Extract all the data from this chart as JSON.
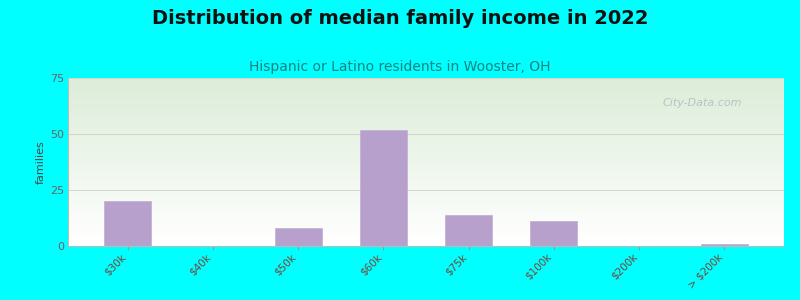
{
  "title": "Distribution of median family income in 2022",
  "subtitle": "Hispanic or Latino residents in Wooster, OH",
  "ylabel": "families",
  "background_outer": "#00FFFF",
  "bg_top_color": "#dcecd8",
  "bg_bottom_color": "#ffffff",
  "bar_color": "#b8a0cc",
  "bar_edge_color": "#c0acd4",
  "categories": [
    "$30k",
    "$40k",
    "$50k",
    "$60k",
    "$75k",
    "$100k",
    "$200k",
    "> $200k"
  ],
  "values": [
    20,
    0,
    8,
    52,
    14,
    11,
    0,
    1
  ],
  "ylim": [
    0,
    75
  ],
  "yticks": [
    0,
    25,
    50,
    75
  ],
  "title_fontsize": 14,
  "title_color": "#111111",
  "subtitle_fontsize": 10,
  "subtitle_color": "#1a8080",
  "watermark": "City-Data.com",
  "watermark_color": "#b0c0c0",
  "tick_label_color": "#774433",
  "tick_label_fontsize": 7.5,
  "ylabel_fontsize": 8,
  "ylabel_color": "#444444",
  "ytick_color": "#666666",
  "grid_color": "#d0d8c8",
  "spine_color": "#bbbbbb"
}
